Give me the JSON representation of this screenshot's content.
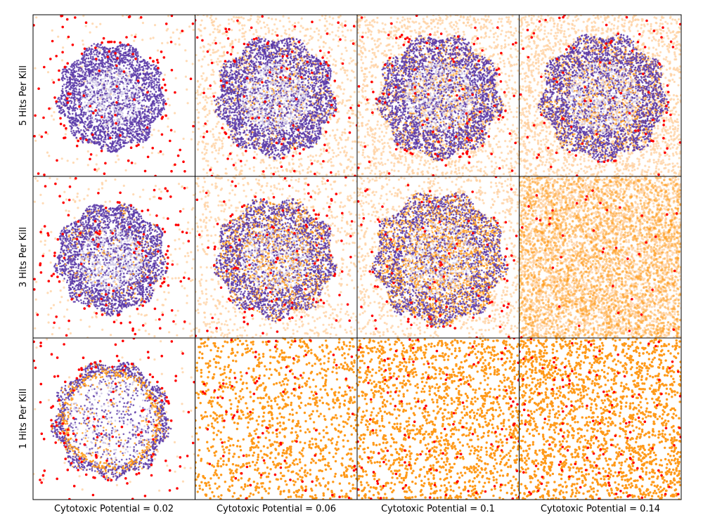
{
  "chart_data": {
    "type": "scatter",
    "layout": "3x4 grid of simulation snapshots",
    "row_labels": [
      "5 Hits Per Kill",
      "3 Hits Per Kill",
      "1 Hits Per Kill"
    ],
    "column_labels": [
      "Cytotoxic Potential = 0.02",
      "Cytotoxic Potential = 0.06",
      "Cytotoxic Potential = 0.1",
      "Cytotoxic Potential = 0.14"
    ],
    "axes_ticks": false,
    "colors": {
      "tumor_cells": "#5b3aa8",
      "tumor_core_light": "#c9c2e3",
      "immune_cells_sparse": "#ff0000",
      "killed_dense": "#ff9a1a",
      "killed_light": "#ffcf9e"
    },
    "panels": [
      {
        "row": "5 Hits Per Kill",
        "col": "Cytotoxic Potential = 0.02",
        "tumor_radius": 0.34,
        "orange_density": 0.0,
        "light_orange_background": 0.05,
        "red_count": 140
      },
      {
        "row": "5 Hits Per Kill",
        "col": "Cytotoxic Potential = 0.06",
        "tumor_radius": 0.38,
        "orange_density": 0.08,
        "light_orange_background": 0.35,
        "red_count": 120
      },
      {
        "row": "5 Hits Per Kill",
        "col": "Cytotoxic Potential = 0.1",
        "tumor_radius": 0.39,
        "orange_density": 0.15,
        "light_orange_background": 0.55,
        "red_count": 110
      },
      {
        "row": "5 Hits Per Kill",
        "col": "Cytotoxic Potential = 0.14",
        "tumor_radius": 0.4,
        "orange_density": 0.2,
        "light_orange_background": 0.7,
        "red_count": 90
      },
      {
        "row": "3 Hits Per Kill",
        "col": "Cytotoxic Potential = 0.02",
        "tumor_radius": 0.35,
        "orange_density": 0.08,
        "light_orange_background": 0.08,
        "red_count": 130
      },
      {
        "row": "3 Hits Per Kill",
        "col": "Cytotoxic Potential = 0.06",
        "tumor_radius": 0.38,
        "orange_density": 0.3,
        "light_orange_background": 0.3,
        "red_count": 110
      },
      {
        "row": "3 Hits Per Kill",
        "col": "Cytotoxic Potential = 0.1",
        "tumor_radius": 0.42,
        "orange_density": 0.4,
        "light_orange_background": 0.4,
        "red_count": 90
      },
      {
        "row": "3 Hits Per Kill",
        "col": "Cytotoxic Potential = 0.14",
        "tumor_radius": 0.0,
        "orange_density": 1.0,
        "light_orange_background": 1.0,
        "red_count": 40
      },
      {
        "row": "1 Hits Per Kill",
        "col": "Cytotoxic Potential = 0.02",
        "tumor_radius": 0.37,
        "orange_density": 0.15,
        "light_orange_background": 0.02,
        "red_count": 140
      },
      {
        "row": "1 Hits Per Kill",
        "col": "Cytotoxic Potential = 0.06",
        "tumor_radius": 0.0,
        "orange_density": 0.55,
        "light_orange_background": 0.0,
        "red_count": 80
      },
      {
        "row": "1 Hits Per Kill",
        "col": "Cytotoxic Potential = 0.1",
        "tumor_radius": 0.0,
        "orange_density": 0.75,
        "light_orange_background": 0.0,
        "red_count": 110
      },
      {
        "row": "1 Hits Per Kill",
        "col": "Cytotoxic Potential = 0.14",
        "tumor_radius": 0.0,
        "orange_density": 0.9,
        "light_orange_background": 0.0,
        "red_count": 120
      }
    ]
  }
}
